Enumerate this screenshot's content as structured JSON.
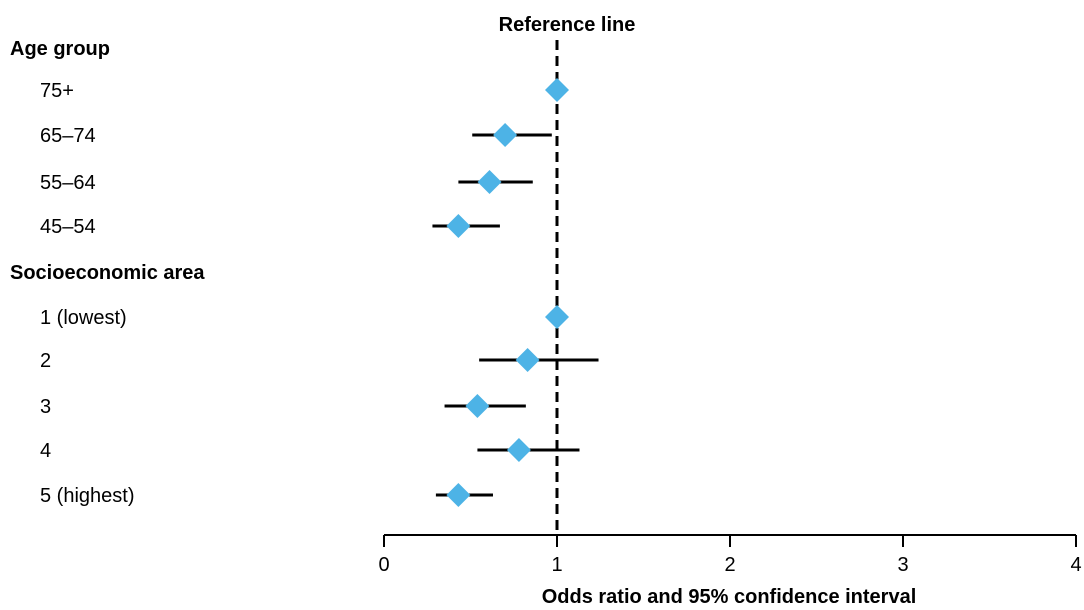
{
  "chart_data": {
    "type": "forest",
    "reference_line_label": "Reference line",
    "reference_value": 1,
    "xlabel": "Odds ratio and 95% confidence interval",
    "xlim": [
      0,
      4
    ],
    "x_ticks": [
      "0",
      "1",
      "2",
      "3",
      "4"
    ],
    "marker_color": "#4DB3E6",
    "groups": [
      {
        "label": "Age group",
        "rows": [
          {
            "label": "75+",
            "or": 1.0,
            "lo": null,
            "hi": null
          },
          {
            "label": "65–74",
            "or": 0.7,
            "lo": 0.51,
            "hi": 0.97
          },
          {
            "label": "55–64",
            "or": 0.61,
            "lo": 0.43,
            "hi": 0.86
          },
          {
            "label": "45–54",
            "or": 0.43,
            "lo": 0.28,
            "hi": 0.67
          }
        ]
      },
      {
        "label": "Socioeconomic area",
        "rows": [
          {
            "label": "1 (lowest)",
            "or": 1.0,
            "lo": null,
            "hi": null
          },
          {
            "label": "2",
            "or": 0.83,
            "lo": 0.55,
            "hi": 1.24
          },
          {
            "label": "3",
            "or": 0.54,
            "lo": 0.35,
            "hi": 0.82
          },
          {
            "label": "4",
            "or": 0.78,
            "lo": 0.54,
            "hi": 1.13
          },
          {
            "label": "5 (highest)",
            "or": 0.43,
            "lo": 0.3,
            "hi": 0.63
          }
        ]
      }
    ]
  }
}
